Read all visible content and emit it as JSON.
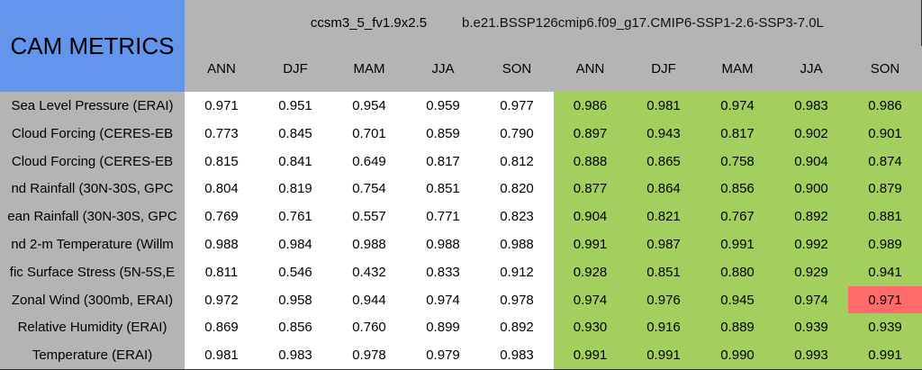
{
  "title": "CAM METRICS",
  "groups": [
    "ccsm3_5_fv1.9x2.5",
    "b.e21.BSSP126cmip6.f09_g17.CMIP6-SSP1-2.6-SSP3-7.0L"
  ],
  "seasons": [
    "ANN",
    "DJF",
    "MAM",
    "JJA",
    "SON"
  ],
  "colors": {
    "header": "#b4b4b4",
    "title_bg": "#6495ed",
    "better": "#a2cf5e",
    "worse": "#ff6b6b",
    "normal": "#ffffff"
  },
  "rows": [
    {
      "label": "Sea Level Pressure (ERAI)",
      "v1": [
        "0.971",
        "0.951",
        "0.954",
        "0.959",
        "0.977"
      ],
      "v2": [
        "0.986",
        "0.981",
        "0.974",
        "0.983",
        "0.986"
      ],
      "status2": [
        "better",
        "better",
        "better",
        "better",
        "better"
      ]
    },
    {
      "label": "Cloud Forcing (CERES-EB",
      "v1": [
        "0.773",
        "0.845",
        "0.701",
        "0.859",
        "0.790"
      ],
      "v2": [
        "0.897",
        "0.943",
        "0.817",
        "0.902",
        "0.901"
      ],
      "status2": [
        "better",
        "better",
        "better",
        "better",
        "better"
      ]
    },
    {
      "label": "Cloud Forcing (CERES-EB",
      "v1": [
        "0.815",
        "0.841",
        "0.649",
        "0.817",
        "0.812"
      ],
      "v2": [
        "0.888",
        "0.865",
        "0.758",
        "0.904",
        "0.874"
      ],
      "status2": [
        "better",
        "better",
        "better",
        "better",
        "better"
      ]
    },
    {
      "label": "nd Rainfall (30N-30S, GPC",
      "v1": [
        "0.804",
        "0.819",
        "0.754",
        "0.851",
        "0.820"
      ],
      "v2": [
        "0.877",
        "0.864",
        "0.856",
        "0.900",
        "0.879"
      ],
      "status2": [
        "better",
        "better",
        "better",
        "better",
        "better"
      ]
    },
    {
      "label": "ean Rainfall (30N-30S, GPC",
      "v1": [
        "0.769",
        "0.761",
        "0.557",
        "0.771",
        "0.823"
      ],
      "v2": [
        "0.904",
        "0.821",
        "0.767",
        "0.892",
        "0.881"
      ],
      "status2": [
        "better",
        "better",
        "better",
        "better",
        "better"
      ]
    },
    {
      "label": "nd 2-m Temperature (Willm",
      "v1": [
        "0.988",
        "0.984",
        "0.988",
        "0.988",
        "0.988"
      ],
      "v2": [
        "0.991",
        "0.987",
        "0.991",
        "0.992",
        "0.989"
      ],
      "status2": [
        "better",
        "better",
        "better",
        "better",
        "better"
      ]
    },
    {
      "label": "fic Surface Stress (5N-5S,E",
      "v1": [
        "0.811",
        "0.546",
        "0.432",
        "0.833",
        "0.912"
      ],
      "v2": [
        "0.928",
        "0.851",
        "0.880",
        "0.929",
        "0.941"
      ],
      "status2": [
        "better",
        "better",
        "better",
        "better",
        "better"
      ]
    },
    {
      "label": "Zonal Wind (300mb, ERAI)",
      "v1": [
        "0.972",
        "0.958",
        "0.944",
        "0.974",
        "0.978"
      ],
      "v2": [
        "0.974",
        "0.976",
        "0.945",
        "0.974",
        "0.971"
      ],
      "status2": [
        "better",
        "better",
        "better",
        "better",
        "worse"
      ]
    },
    {
      "label": "Relative Humidity (ERAI)",
      "v1": [
        "0.869",
        "0.856",
        "0.760",
        "0.899",
        "0.892"
      ],
      "v2": [
        "0.930",
        "0.916",
        "0.889",
        "0.939",
        "0.939"
      ],
      "status2": [
        "better",
        "better",
        "better",
        "better",
        "better"
      ]
    },
    {
      "label": "Temperature (ERAI)",
      "v1": [
        "0.981",
        "0.983",
        "0.978",
        "0.979",
        "0.983"
      ],
      "v2": [
        "0.991",
        "0.991",
        "0.990",
        "0.993",
        "0.991"
      ],
      "status2": [
        "better",
        "better",
        "better",
        "better",
        "better"
      ]
    }
  ]
}
